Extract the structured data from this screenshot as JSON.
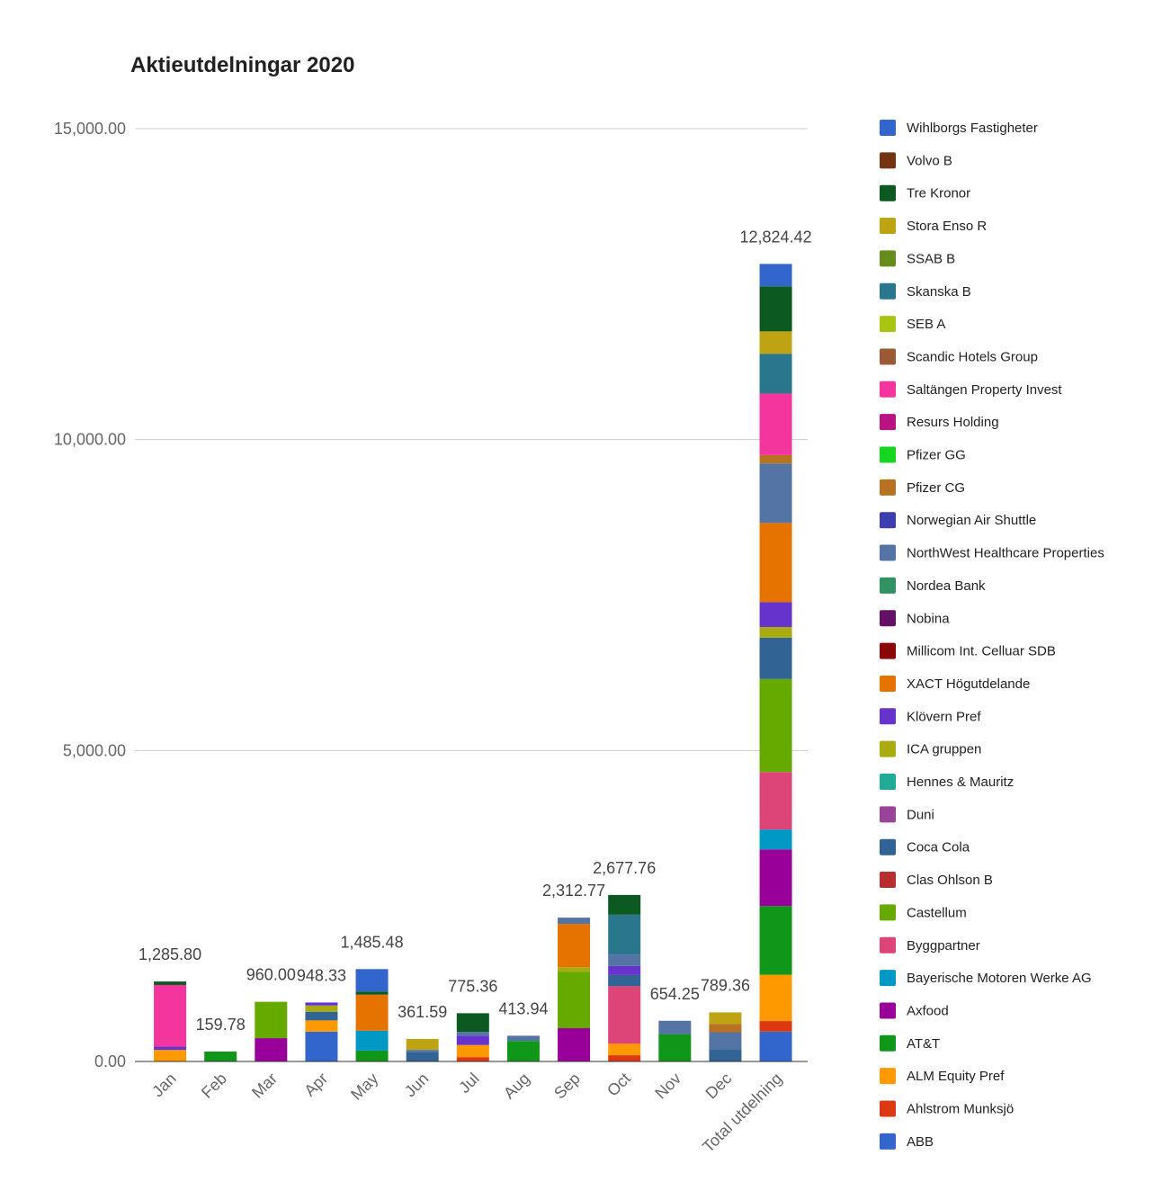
{
  "chart_data": {
    "type": "bar",
    "stacked": true,
    "title": "Aktieutdelningar 2020",
    "categories": [
      "Jan",
      "Feb",
      "Mar",
      "Apr",
      "May",
      "Jun",
      "Jul",
      "Aug",
      "Sep",
      "Oct",
      "Nov",
      "Dec",
      "Total utdelning"
    ],
    "ylim": [
      0,
      15000
    ],
    "ytick_values": [
      0,
      5000,
      10000,
      15000
    ],
    "yticks": [
      "0.00",
      "5,000.00",
      "10,000.00",
      "15,000.00"
    ],
    "grid": true,
    "legend_position": "right",
    "data_labels": [
      "1,285.80",
      "159.78",
      "960.00",
      "948.33",
      "1,485.48",
      "361.59",
      "775.36",
      "413.94",
      "2,312.77",
      "2,677.76",
      "654.25",
      "789.36",
      "12,824.42"
    ],
    "series": [
      {
        "name": "ABB",
        "color": "#3366cc",
        "values": [
          0,
          0,
          0,
          480,
          0,
          0,
          0,
          0,
          0,
          0,
          0,
          0,
          480
        ]
      },
      {
        "name": "Ahlstrom Munksjö",
        "color": "#dc3912",
        "values": [
          0,
          0,
          0,
          0,
          0,
          0,
          70,
          0,
          0,
          100,
          0,
          0,
          170
        ]
      },
      {
        "name": "ALM Equity Pref",
        "color": "#ff9900",
        "values": [
          185,
          0,
          0,
          180,
          0,
          0,
          195,
          0,
          0,
          185,
          0,
          0,
          745
        ]
      },
      {
        "name": "AT&T",
        "color": "#109618",
        "values": [
          0,
          159.78,
          0,
          0,
          175,
          0,
          0,
          330,
          0,
          0,
          440,
          0,
          1104.78
        ]
      },
      {
        "name": "Axfood",
        "color": "#990099",
        "values": [
          0,
          0,
          375,
          0,
          0,
          0,
          0,
          0,
          535,
          0,
          0,
          0,
          910
        ]
      },
      {
        "name": "Bayerische Motoren Werke AG",
        "color": "#0099c6",
        "values": [
          0,
          0,
          0,
          0,
          320,
          0,
          0,
          0,
          0,
          0,
          0,
          0,
          320
        ]
      },
      {
        "name": "Byggpartner",
        "color": "#dd4477",
        "values": [
          0,
          0,
          0,
          0,
          0,
          0,
          0,
          0,
          0,
          925,
          0,
          0,
          925
        ]
      },
      {
        "name": "Castellum",
        "color": "#66aa00",
        "values": [
          0,
          0,
          585,
          0,
          0,
          0,
          0,
          0,
          910,
          0,
          0,
          0,
          1495
        ]
      },
      {
        "name": "Clas Ohlson B",
        "color": "#b82e2e",
        "values": [
          0,
          0,
          0,
          0,
          0,
          0,
          0,
          0,
          0,
          0,
          0,
          0,
          0
        ]
      },
      {
        "name": "Coca Cola",
        "color": "#316395",
        "values": [
          0,
          0,
          0,
          140,
          0,
          145,
          0,
          0,
          0,
          180,
          0,
          200,
          665
        ]
      },
      {
        "name": "Duni",
        "color": "#994499",
        "values": [
          0,
          0,
          0,
          0,
          0,
          0,
          0,
          0,
          0,
          0,
          0,
          0,
          0
        ]
      },
      {
        "name": "Hennes & Mauritz",
        "color": "#22aa99",
        "values": [
          0,
          0,
          0,
          0,
          0,
          0,
          0,
          0,
          0,
          0,
          0,
          0,
          0
        ]
      },
      {
        "name": "ICA gruppen",
        "color": "#aaaa11",
        "values": [
          0,
          0,
          0,
          100,
          0,
          0,
          0,
          0,
          72,
          0,
          0,
          0,
          172
        ]
      },
      {
        "name": "Klövern Pref",
        "color": "#6633cc",
        "values": [
          55,
          0,
          0,
          48.33,
          0,
          0,
          150,
          0,
          0,
          145,
          0,
          0,
          398.33
        ]
      },
      {
        "name": "XACT Högutdelande",
        "color": "#e67300",
        "values": [
          0,
          0,
          0,
          0,
          580,
          0,
          0,
          0,
          695,
          0,
          0,
          0,
          1275
        ]
      },
      {
        "name": "Millicom Int. Celluar SDB",
        "color": "#8b0707",
        "values": [
          0,
          0,
          0,
          0,
          0,
          0,
          0,
          0,
          0,
          0,
          0,
          0,
          0
        ]
      },
      {
        "name": "Nobina",
        "color": "#651067",
        "values": [
          0,
          0,
          0,
          0,
          0,
          0,
          0,
          0,
          0,
          0,
          0,
          0,
          0
        ]
      },
      {
        "name": "Nordea Bank",
        "color": "#329262",
        "values": [
          0,
          0,
          0,
          0,
          0,
          0,
          0,
          0,
          0,
          0,
          0,
          0,
          0
        ]
      },
      {
        "name": "NorthWest Healthcare Properties",
        "color": "#5574a6",
        "values": [
          0,
          0,
          0,
          0,
          0,
          41.59,
          60,
          83.94,
          100.77,
          185,
          214.25,
          270,
          955.55
        ]
      },
      {
        "name": "Norwegian Air Shuttle",
        "color": "#3b3eac",
        "values": [
          0,
          0,
          0,
          0,
          0,
          0,
          0,
          0,
          0,
          0,
          0,
          0,
          0
        ]
      },
      {
        "name": "Pfizer CG",
        "color": "#b77322",
        "values": [
          0,
          0,
          0,
          0,
          0,
          0,
          0,
          0,
          0,
          0,
          0,
          135,
          135
        ]
      },
      {
        "name": "Pfizer GG",
        "color": "#16d620",
        "values": [
          0,
          0,
          0,
          0,
          0,
          0,
          0,
          0,
          0,
          0,
          0,
          0,
          0
        ]
      },
      {
        "name": "Resurs Holding",
        "color": "#b91383",
        "values": [
          0,
          0,
          0,
          0,
          0,
          0,
          0,
          0,
          0,
          0,
          0,
          0,
          0
        ]
      },
      {
        "name": "Saltängen Property Invest",
        "color": "#f4359e",
        "values": [
          990,
          0,
          0,
          0,
          0,
          0,
          0,
          0,
          0,
          0,
          0,
          0,
          990
        ]
      },
      {
        "name": "Scandic Hotels Group",
        "color": "#9c5935",
        "values": [
          0,
          0,
          0,
          0,
          0,
          0,
          0,
          0,
          0,
          0,
          0,
          0,
          0
        ]
      },
      {
        "name": "SEB A",
        "color": "#a9c413",
        "values": [
          0,
          0,
          0,
          0,
          0,
          0,
          0,
          0,
          0,
          0,
          0,
          0,
          0
        ]
      },
      {
        "name": "Skanska B",
        "color": "#2a778d",
        "values": [
          0,
          0,
          0,
          0,
          0,
          0,
          0,
          0,
          0,
          640,
          0,
          0,
          640
        ]
      },
      {
        "name": "SSAB B",
        "color": "#668d1c",
        "values": [
          0,
          0,
          0,
          0,
          0,
          0,
          0,
          0,
          0,
          0,
          0,
          0,
          0
        ]
      },
      {
        "name": "Stora Enso R",
        "color": "#bea413",
        "values": [
          0,
          0,
          0,
          0,
          0,
          175,
          0,
          0,
          0,
          0,
          0,
          184.36,
          359.36
        ]
      },
      {
        "name": "Tre Kronor",
        "color": "#0c5922",
        "values": [
          55.8,
          0,
          0,
          0,
          50,
          0,
          300.36,
          0,
          0,
          317.76,
          0,
          0,
          723.92
        ]
      },
      {
        "name": "Volvo B",
        "color": "#743411",
        "values": [
          0,
          0,
          0,
          0,
          0,
          0,
          0,
          0,
          0,
          0,
          0,
          0,
          0
        ]
      },
      {
        "name": "Wihlborgs Fastigheter",
        "color": "#3366cc",
        "values": [
          0,
          0,
          0,
          0,
          360.48,
          0,
          0,
          0,
          0,
          0,
          0,
          0,
          360.48
        ]
      }
    ]
  }
}
